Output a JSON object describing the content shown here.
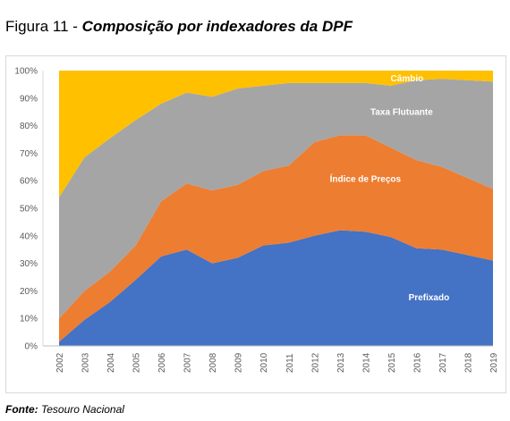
{
  "figure": {
    "number_label": "Figura 11 - ",
    "name": "Composição por indexadores da DPF"
  },
  "source": {
    "key": "Fonte:",
    "value": " Tesouro Nacional"
  },
  "chart_data": {
    "type": "area",
    "stacked": true,
    "title": "",
    "xlabel": "",
    "ylabel": "",
    "ylim": [
      0,
      100
    ],
    "y_ticks": [
      "0%",
      "10%",
      "20%",
      "30%",
      "40%",
      "50%",
      "60%",
      "70%",
      "80%",
      "90%",
      "100%"
    ],
    "categories": [
      "2002",
      "2003",
      "2004",
      "2005",
      "2006",
      "2007",
      "2008",
      "2009",
      "2010",
      "2011",
      "2012",
      "2013",
      "2014",
      "2015",
      "2016",
      "2017",
      "2018",
      "2019"
    ],
    "grid": true,
    "legend": "none",
    "series": [
      {
        "name": "Prefixado",
        "color": "#4472c4",
        "values": [
          1.5,
          9.5,
          16,
          24,
          32.5,
          35,
          30,
          32,
          36.5,
          37.5,
          40,
          42,
          41.5,
          39.5,
          35.5,
          35,
          33,
          31
        ]
      },
      {
        "name": "Índice de Preços",
        "color": "#ed7d31",
        "values": [
          8.5,
          10.5,
          11,
          12.5,
          20,
          24,
          26.5,
          26.5,
          27,
          28,
          34,
          34.5,
          35,
          32.5,
          32,
          30,
          28,
          26
        ]
      },
      {
        "name": "Taxa Flutuante",
        "color": "#a5a5a5",
        "values": [
          44,
          48.5,
          48.5,
          45.5,
          35.5,
          33,
          34,
          35,
          31,
          30,
          21.5,
          19,
          19,
          22.5,
          29,
          32,
          35.5,
          39
        ]
      },
      {
        "name": "Câmbio",
        "color": "#ffc000",
        "values": [
          46,
          31.5,
          24.5,
          18,
          12,
          8,
          9.5,
          6.5,
          5.5,
          4.5,
          4.5,
          4.5,
          4.5,
          5.5,
          3.5,
          3,
          3.5,
          4
        ]
      }
    ]
  }
}
